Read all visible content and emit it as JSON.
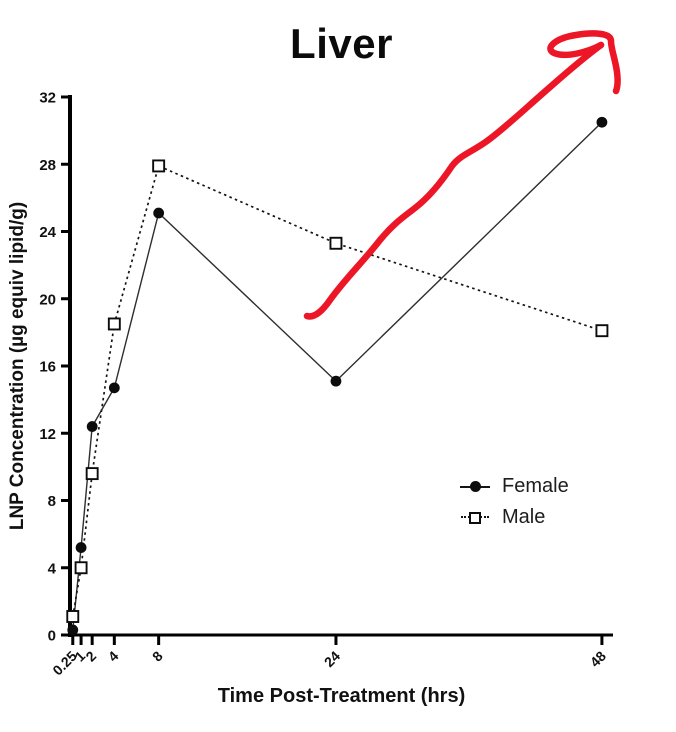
{
  "chart_data": {
    "type": "line",
    "title": "Liver",
    "xlabel": "Time Post-Treatment (hrs)",
    "ylabel": "LNP Concentration (µg equiv lipid/g)",
    "x": [
      0.25,
      1,
      2,
      4,
      8,
      24,
      48
    ],
    "x_tick_labels": [
      "0.25",
      "1",
      "2",
      "4",
      "8",
      "24",
      "48"
    ],
    "y_ticks": [
      0,
      4,
      8,
      12,
      16,
      20,
      24,
      28,
      32
    ],
    "xlim": [
      0,
      49
    ],
    "ylim": [
      0,
      32
    ],
    "grid": false,
    "legend_position": "right-middle",
    "series": [
      {
        "name": "Female",
        "marker": "filled-circle",
        "line_style": "solid",
        "color": "#111111",
        "values": [
          0.3,
          5.2,
          12.4,
          14.7,
          25.1,
          15.1,
          30.5
        ]
      },
      {
        "name": "Male",
        "marker": "open-square",
        "line_style": "dotted",
        "color": "#111111",
        "values": [
          1.1,
          4.0,
          9.6,
          18.5,
          27.9,
          23.3,
          18.1
        ]
      }
    ]
  },
  "annotation": {
    "kind": "freehand-arrow",
    "description": "hand-drawn red arrow pointing up and to the right over the plot",
    "color": "#ec1626",
    "stroke_width": 6.5,
    "paths": [
      "M 307,316 C 313,318 321,313 330,300 C 345,279 362,263 380,240 C 395,222 405,216 415,208 C 428,198 440,184 452,166 C 460,155 472,152 487,141 C 505,128 527,107 549,88 C 566,73 586,56 601,45",
      "M 601,45 C 588,52 566,58 554,53 C 544,48 556,38 576,35 C 594,32 611,33 611,41 C 611,49 615,58 617,72 C 618,80 618,86 616,91"
    ]
  },
  "colors": {
    "background": "#ffffff",
    "axis": "#000000",
    "tick_text": "#111111",
    "annotation_red": "#ec1626"
  }
}
